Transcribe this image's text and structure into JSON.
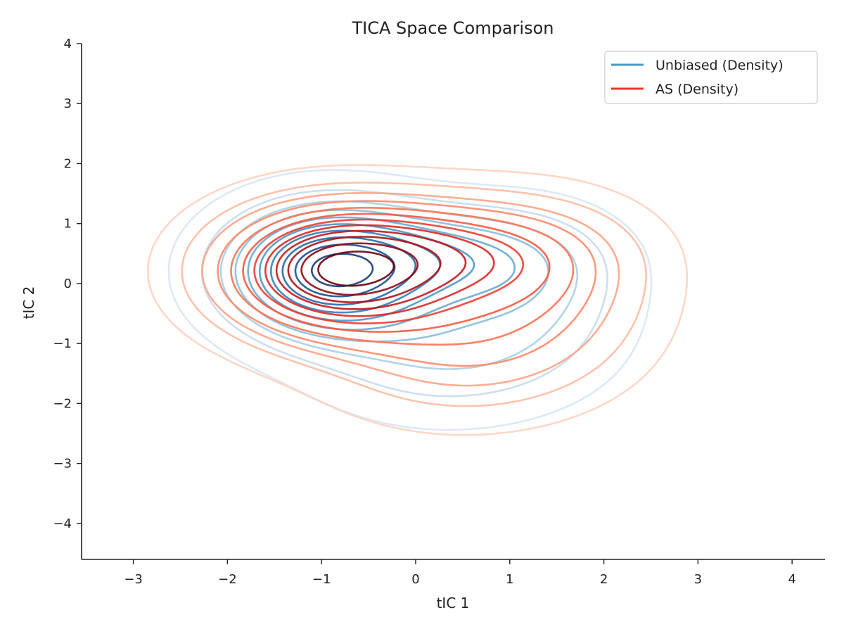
{
  "chart_data": {
    "type": "contour",
    "title": "TICA Space Comparison",
    "xlabel": "tIC 1",
    "ylabel": "tIC 2",
    "xlim": [
      -3.55,
      4.35
    ],
    "ylim": [
      -4.6,
      4.0
    ],
    "xticks": [
      -3,
      -2,
      -1,
      0,
      1,
      2,
      3,
      4
    ],
    "yticks": [
      -4,
      -3,
      -2,
      -1,
      0,
      1,
      2,
      3,
      4
    ],
    "xtick_labels": [
      "−3",
      "−2",
      "−1",
      "0",
      "1",
      "2",
      "3",
      "4"
    ],
    "ytick_labels": [
      "−4",
      "−3",
      "−2",
      "−1",
      "0",
      "1",
      "2",
      "3",
      "4"
    ],
    "grid": false,
    "legend_position": "top-right",
    "series": [
      {
        "name": "Unbiased (Density)",
        "legend_color": "#4a98c9",
        "colormap": "Blues",
        "level_count": 10,
        "peak": [
          -1.0,
          0.2
        ],
        "components": [
          {
            "mx": -0.95,
            "my": 0.2,
            "sx": 0.7,
            "sy": 0.7,
            "w": 1.0
          },
          {
            "mx": 0.35,
            "my": 0.45,
            "sx": 0.85,
            "sy": 0.55,
            "w": 0.45
          },
          {
            "mx": 0.3,
            "my": -1.1,
            "sx": 0.9,
            "sy": 0.75,
            "w": 0.28
          },
          {
            "mx": 1.35,
            "my": -0.15,
            "sx": 0.65,
            "sy": 0.85,
            "w": 0.2
          }
        ]
      },
      {
        "name": "AS (Density)",
        "legend_color": "#e03a2f",
        "colormap": "Reds",
        "level_count": 12,
        "peak": [
          -0.9,
          0.2
        ],
        "components": [
          {
            "mx": -0.9,
            "my": 0.2,
            "sx": 0.82,
            "sy": 0.72,
            "w": 1.0
          },
          {
            "mx": 0.45,
            "my": 0.55,
            "sx": 0.95,
            "sy": 0.6,
            "w": 0.5
          },
          {
            "mx": 0.45,
            "my": -1.05,
            "sx": 0.95,
            "sy": 0.8,
            "w": 0.32
          },
          {
            "mx": 1.5,
            "my": -0.1,
            "sx": 0.75,
            "sy": 0.9,
            "w": 0.24
          }
        ]
      }
    ]
  }
}
